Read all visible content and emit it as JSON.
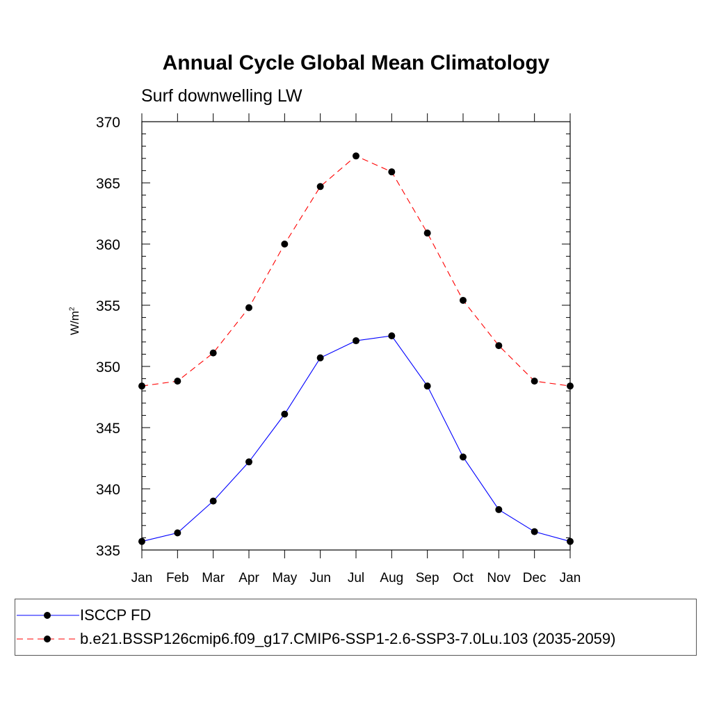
{
  "chart_data": {
    "type": "line",
    "title": "Annual Cycle Global Mean Climatology",
    "subtitle": "Surf downwelling LW",
    "ylabel_base": "W/m",
    "ylabel_sup": "2",
    "ylim": [
      335,
      370
    ],
    "yticks": [
      335,
      340,
      345,
      350,
      355,
      360,
      365,
      370
    ],
    "categories": [
      "Jan",
      "Feb",
      "Mar",
      "Apr",
      "May",
      "Jun",
      "Jul",
      "Aug",
      "Sep",
      "Oct",
      "Nov",
      "Dec",
      "Jan"
    ],
    "series": [
      {
        "name": "ISCCP FD",
        "color": "#0000ff",
        "dash": "solid",
        "values": [
          335.7,
          336.4,
          339.0,
          342.2,
          346.1,
          350.7,
          352.1,
          352.5,
          348.4,
          342.6,
          338.3,
          336.5,
          335.7
        ]
      },
      {
        "name": "b.e21.BSSP126cmip6.f09_g17.CMIP6-SSP1-2.6-SSP3-7.0Lu.103 (2035-2059)",
        "color": "#ff0000",
        "dash": "dashed",
        "values": [
          348.4,
          348.8,
          351.1,
          354.8,
          360.0,
          364.7,
          367.2,
          365.9,
          360.9,
          355.4,
          351.7,
          348.8,
          348.4
        ]
      }
    ],
    "marker": "filled-circle",
    "marker_color": "#000000",
    "grid": false,
    "legend_position": "bottom"
  }
}
